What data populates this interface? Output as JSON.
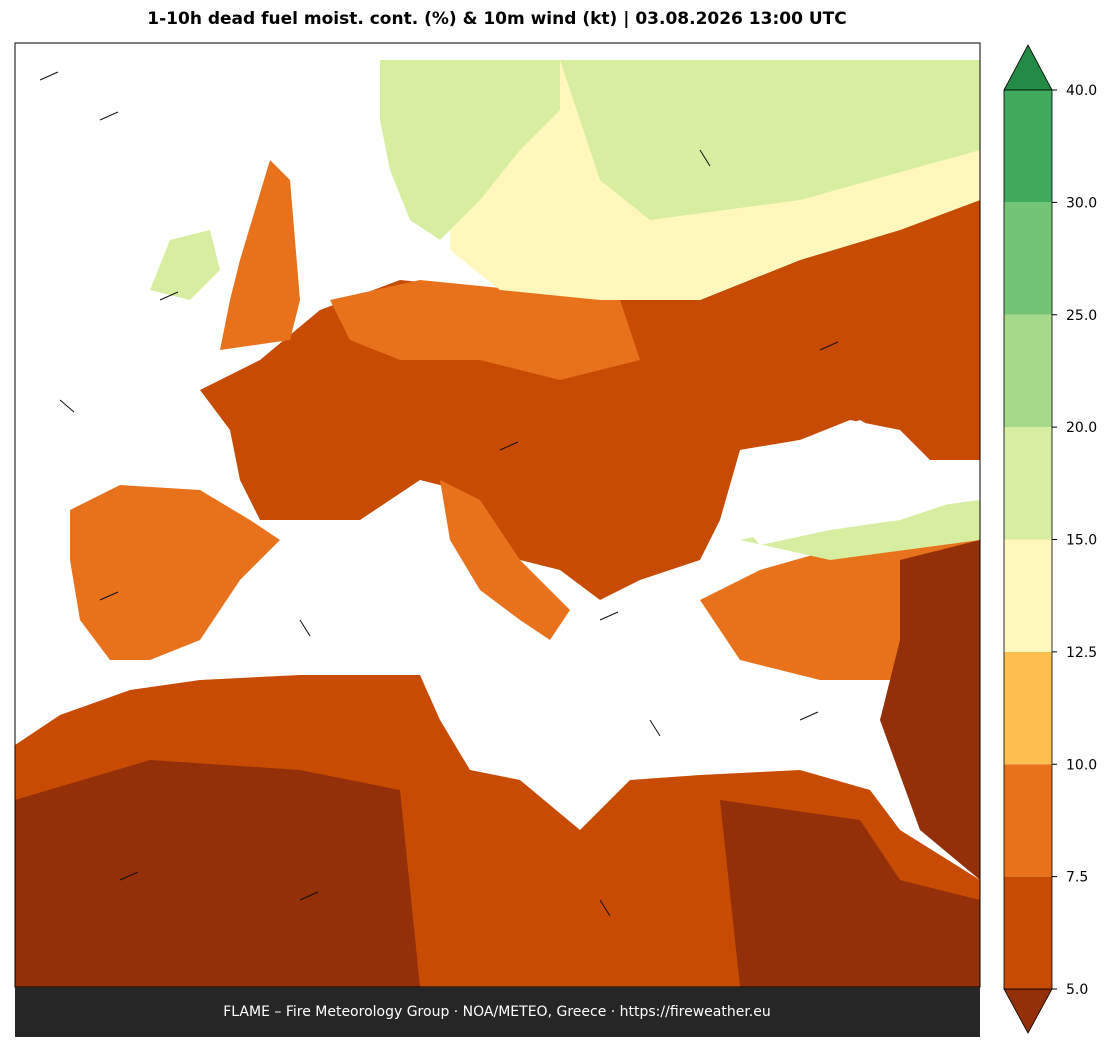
{
  "title": "1-10h dead fuel moist. cont. (%) & 10m wind (kt)  |  03.08.2026 13:00 UTC",
  "footer": "FLAME – Fire Meteorology Group · NOA/METEO, Greece · https://fireweather.eu",
  "colorbar": {
    "ticks": [
      {
        "value": 5,
        "label": "5.0"
      },
      {
        "value": 7.5,
        "label": "7.5"
      },
      {
        "value": 10,
        "label": "10.0"
      },
      {
        "value": 12.5,
        "label": "12.5"
      },
      {
        "value": 15,
        "label": "15.0"
      },
      {
        "value": 20,
        "label": "20.0"
      },
      {
        "value": 25,
        "label": "25.0"
      },
      {
        "value": 30,
        "label": "30.0"
      },
      {
        "value": 40,
        "label": "40.0"
      }
    ],
    "colors": [
      "#c84b04",
      "#e8721c",
      "#fdbf50",
      "#fff7bb",
      "#d7eea0",
      "#a6d98a",
      "#74c476",
      "#41ab5d"
    ],
    "under_color": "#933009",
    "over_color": "#238b45"
  }
}
